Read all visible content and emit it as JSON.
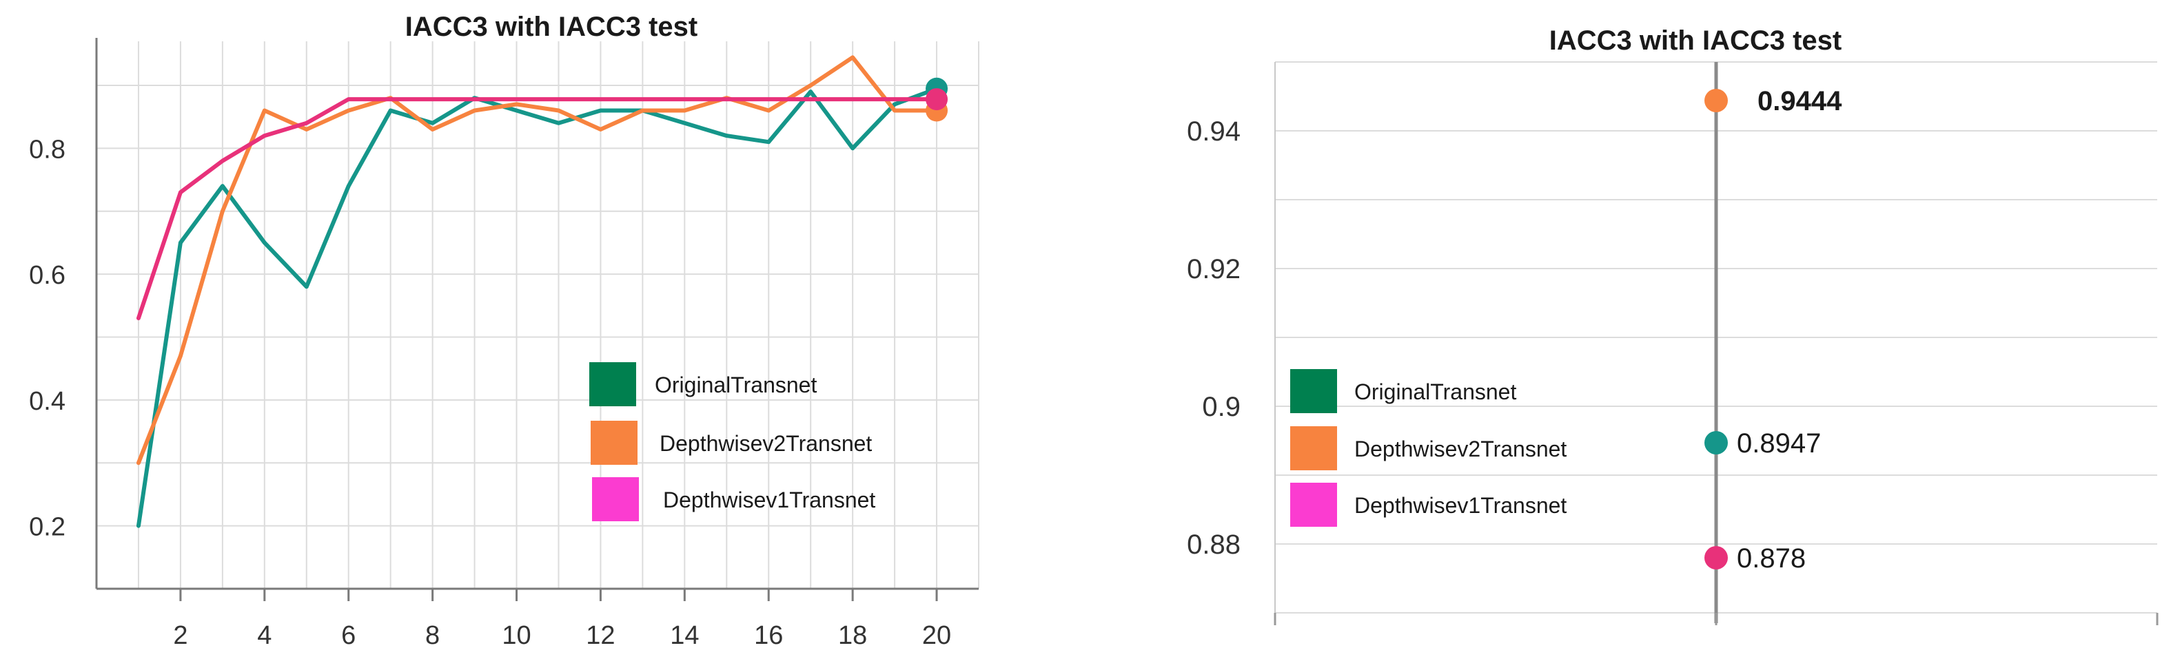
{
  "chart_data": [
    {
      "type": "line",
      "title": "IACC3 with IACC3 test",
      "xlabel": "",
      "ylabel": "",
      "x": [
        1,
        2,
        3,
        4,
        5,
        6,
        7,
        8,
        9,
        10,
        11,
        12,
        13,
        14,
        15,
        16,
        17,
        18,
        19,
        20
      ],
      "x_ticks": [
        2,
        4,
        6,
        8,
        10,
        12,
        14,
        16,
        18,
        20
      ],
      "x_tick_labels": [
        "2",
        "4",
        "6",
        "8",
        "10",
        "12",
        "14",
        "16",
        "18",
        "20"
      ],
      "xlim": [
        0,
        21
      ],
      "y_ticks": [
        0.2,
        0.4,
        0.6,
        0.8
      ],
      "y_tick_labels": [
        "0.2",
        "0.4",
        "0.6",
        "0.8"
      ],
      "ylim": [
        0.1,
        0.97
      ],
      "grid": true,
      "legend_position": "center-right",
      "series": [
        {
          "name": "OriginalTransnet",
          "legend_color": "#00804f",
          "line_color": "#15968a",
          "values": [
            0.2,
            0.65,
            0.74,
            0.65,
            0.58,
            0.74,
            0.86,
            0.84,
            0.88,
            0.86,
            0.84,
            0.86,
            0.86,
            0.84,
            0.82,
            0.81,
            0.89,
            0.8,
            0.87,
            0.8947
          ],
          "end_marker": true
        },
        {
          "name": "Depthwisev2Transnet",
          "legend_color": "#f7833f",
          "line_color": "#f7833f",
          "values": [
            0.3,
            0.47,
            0.7,
            0.86,
            0.83,
            0.86,
            0.88,
            0.83,
            0.86,
            0.87,
            0.86,
            0.83,
            0.86,
            0.86,
            0.88,
            0.86,
            0.9,
            0.9444,
            0.86,
            0.86
          ],
          "end_marker": true
        },
        {
          "name": "Depthwisev1Transnet",
          "legend_color": "#fb3cd0",
          "line_color": "#e8317a",
          "values": [
            0.53,
            0.73,
            0.78,
            0.82,
            0.84,
            0.878,
            0.878,
            0.878,
            0.878,
            0.878,
            0.878,
            0.878,
            0.878,
            0.878,
            0.878,
            0.878,
            0.878,
            0.878,
            0.878,
            0.878
          ],
          "end_marker": true
        }
      ]
    },
    {
      "type": "scatter",
      "title": "IACC3 with IACC3 test",
      "xlabel": "",
      "ylabel": "",
      "y_ticks": [
        0.88,
        0.9,
        0.92,
        0.94
      ],
      "y_tick_labels": [
        "0.88",
        "0.9",
        "0.92",
        "0.94"
      ],
      "ylim": [
        0.87,
        0.951
      ],
      "grid": true,
      "legend_position": "center-left",
      "points": [
        {
          "series": "Depthwisev2Transnet",
          "value": 0.9444,
          "label": "0.9444",
          "color": "#f7833f",
          "label_bold": true
        },
        {
          "series": "OriginalTransnet",
          "value": 0.8947,
          "label": "0.8947",
          "color": "#15968a",
          "label_bold": false
        },
        {
          "series": "Depthwisev1Transnet",
          "value": 0.878,
          "label": "0.878",
          "color": "#e8317a",
          "label_bold": false
        }
      ],
      "legend": [
        {
          "name": "OriginalTransnet",
          "color": "#00804f"
        },
        {
          "name": "Depthwisev2Transnet",
          "color": "#f7833f"
        },
        {
          "name": "Depthwisev1Transnet",
          "color": "#fb3cd0"
        }
      ]
    }
  ]
}
